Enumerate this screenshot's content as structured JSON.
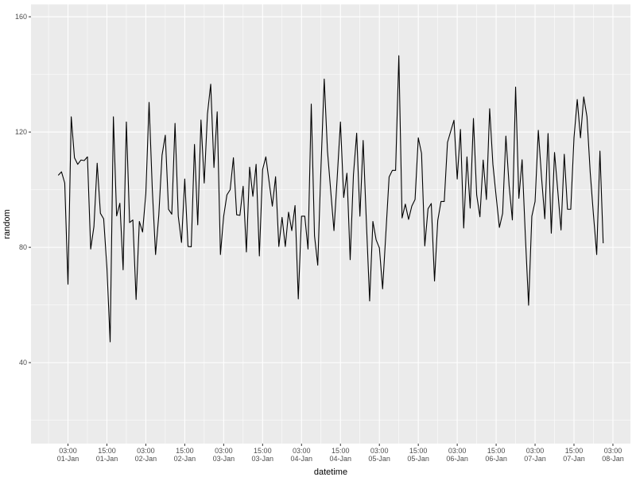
{
  "chart_data": {
    "type": "line",
    "xlabel": "datetime",
    "ylabel": "random",
    "grid": true,
    "line_color": "#000000",
    "panel_color": "#EBEBEB",
    "grid_color": "#FFFFFF",
    "ylim": [
      11.9,
      164.3
    ],
    "y_ticks": [
      40,
      80,
      120,
      160
    ],
    "x_ticks": [
      {
        "time": "03:00",
        "date": "01-Jan"
      },
      {
        "time": "15:00",
        "date": "01-Jan"
      },
      {
        "time": "03:00",
        "date": "02-Jan"
      },
      {
        "time": "15:00",
        "date": "02-Jan"
      },
      {
        "time": "03:00",
        "date": "03-Jan"
      },
      {
        "time": "15:00",
        "date": "03-Jan"
      },
      {
        "time": "03:00",
        "date": "04-Jan"
      },
      {
        "time": "15:00",
        "date": "04-Jan"
      },
      {
        "time": "03:00",
        "date": "05-Jan"
      },
      {
        "time": "15:00",
        "date": "05-Jan"
      },
      {
        "time": "03:00",
        "date": "06-Jan"
      },
      {
        "time": "15:00",
        "date": "06-Jan"
      },
      {
        "time": "03:00",
        "date": "07-Jan"
      },
      {
        "time": "15:00",
        "date": "07-Jan"
      },
      {
        "time": "03:00",
        "date": "08-Jan"
      }
    ],
    "x": [
      "01-Jan 00:00",
      "01-Jan 01:00",
      "01-Jan 02:00",
      "01-Jan 03:00",
      "01-Jan 04:00",
      "01-Jan 05:00",
      "01-Jan 06:00",
      "01-Jan 07:00",
      "01-Jan 08:00",
      "01-Jan 09:00",
      "01-Jan 10:00",
      "01-Jan 11:00",
      "01-Jan 12:00",
      "01-Jan 13:00",
      "01-Jan 14:00",
      "01-Jan 15:00",
      "01-Jan 16:00",
      "01-Jan 17:00",
      "01-Jan 18:00",
      "01-Jan 19:00",
      "01-Jan 20:00",
      "01-Jan 21:00",
      "01-Jan 22:00",
      "01-Jan 23:00",
      "02-Jan 00:00",
      "02-Jan 01:00",
      "02-Jan 02:00",
      "02-Jan 03:00",
      "02-Jan 04:00",
      "02-Jan 05:00",
      "02-Jan 06:00",
      "02-Jan 07:00",
      "02-Jan 08:00",
      "02-Jan 09:00",
      "02-Jan 10:00",
      "02-Jan 11:00",
      "02-Jan 12:00",
      "02-Jan 13:00",
      "02-Jan 14:00",
      "02-Jan 15:00",
      "02-Jan 16:00",
      "02-Jan 17:00",
      "02-Jan 18:00",
      "02-Jan 19:00",
      "02-Jan 20:00",
      "02-Jan 21:00",
      "02-Jan 22:00",
      "02-Jan 23:00",
      "03-Jan 00:00",
      "03-Jan 01:00",
      "03-Jan 02:00",
      "03-Jan 03:00",
      "03-Jan 04:00",
      "03-Jan 05:00",
      "03-Jan 06:00",
      "03-Jan 07:00",
      "03-Jan 08:00",
      "03-Jan 09:00",
      "03-Jan 10:00",
      "03-Jan 11:00",
      "03-Jan 12:00",
      "03-Jan 13:00",
      "03-Jan 14:00",
      "03-Jan 15:00",
      "03-Jan 16:00",
      "03-Jan 17:00",
      "03-Jan 18:00",
      "03-Jan 19:00",
      "03-Jan 20:00",
      "03-Jan 21:00",
      "03-Jan 22:00",
      "03-Jan 23:00",
      "04-Jan 00:00",
      "04-Jan 01:00",
      "04-Jan 02:00",
      "04-Jan 03:00",
      "04-Jan 04:00",
      "04-Jan 05:00",
      "04-Jan 06:00",
      "04-Jan 07:00",
      "04-Jan 08:00",
      "04-Jan 09:00",
      "04-Jan 10:00",
      "04-Jan 11:00",
      "04-Jan 12:00",
      "04-Jan 13:00",
      "04-Jan 14:00",
      "04-Jan 15:00",
      "04-Jan 16:00",
      "04-Jan 17:00",
      "04-Jan 18:00",
      "04-Jan 19:00",
      "04-Jan 20:00",
      "04-Jan 21:00",
      "04-Jan 22:00",
      "04-Jan 23:00",
      "05-Jan 00:00",
      "05-Jan 01:00",
      "05-Jan 02:00",
      "05-Jan 03:00",
      "05-Jan 04:00",
      "05-Jan 05:00",
      "05-Jan 06:00",
      "05-Jan 07:00",
      "05-Jan 08:00",
      "05-Jan 09:00",
      "05-Jan 10:00",
      "05-Jan 11:00",
      "05-Jan 12:00",
      "05-Jan 13:00",
      "05-Jan 14:00",
      "05-Jan 15:00",
      "05-Jan 16:00",
      "05-Jan 17:00",
      "05-Jan 18:00",
      "05-Jan 19:00",
      "05-Jan 20:00",
      "05-Jan 21:00",
      "05-Jan 22:00",
      "05-Jan 23:00",
      "06-Jan 00:00",
      "06-Jan 01:00",
      "06-Jan 02:00",
      "06-Jan 03:00",
      "06-Jan 04:00",
      "06-Jan 05:00",
      "06-Jan 06:00",
      "06-Jan 07:00",
      "06-Jan 08:00",
      "06-Jan 09:00",
      "06-Jan 10:00",
      "06-Jan 11:00",
      "06-Jan 12:00",
      "06-Jan 13:00",
      "06-Jan 14:00",
      "06-Jan 15:00",
      "06-Jan 16:00",
      "06-Jan 17:00",
      "06-Jan 18:00",
      "06-Jan 19:00",
      "06-Jan 20:00",
      "06-Jan 21:00",
      "06-Jan 22:00",
      "06-Jan 23:00",
      "07-Jan 00:00",
      "07-Jan 01:00",
      "07-Jan 02:00",
      "07-Jan 03:00",
      "07-Jan 04:00",
      "07-Jan 05:00",
      "07-Jan 06:00",
      "07-Jan 07:00",
      "07-Jan 08:00",
      "07-Jan 09:00",
      "07-Jan 10:00",
      "07-Jan 11:00",
      "07-Jan 12:00",
      "07-Jan 13:00",
      "07-Jan 14:00",
      "07-Jan 15:00",
      "07-Jan 16:00",
      "07-Jan 17:00",
      "07-Jan 18:00",
      "07-Jan 19:00",
      "07-Jan 20:00",
      "07-Jan 21:00",
      "07-Jan 22:00",
      "07-Jan 23:00",
      "08-Jan 00:00"
    ],
    "values": [
      105,
      106.2,
      102.3,
      67.2,
      125.3,
      111.1,
      108.8,
      110.3,
      110.1,
      111.4,
      79.4,
      87.2,
      109.2,
      91.8,
      89.9,
      73,
      47.2,
      125.3,
      90.9,
      95.3,
      72.2,
      123.5,
      88.6,
      89.5,
      61.9,
      89.0,
      85.3,
      98.7,
      130.3,
      100,
      77.5,
      91.3,
      112,
      118.9,
      93.2,
      91.5,
      123,
      90.8,
      81.7,
      103.7,
      80.3,
      80.2,
      115.7,
      87.8,
      124.2,
      102.3,
      126.3,
      136.6,
      107.7,
      127,
      77.5,
      90.8,
      98.2,
      100,
      111.1,
      91.3,
      91.1,
      101.2,
      78.4,
      107.8,
      97.7,
      108.8,
      77.0,
      107.0,
      111.4,
      102.8,
      94.3,
      104.5,
      80.3,
      90.4,
      80.3,
      92.2,
      85.8,
      94.5,
      62.1,
      90.8,
      90.8,
      79.4,
      129.7,
      84.0,
      73.8,
      107.9,
      138.4,
      113.4,
      99.6,
      85.8,
      104.2,
      123.5,
      97.3,
      105.7,
      75.7,
      105.1,
      119.6,
      90.8,
      117.1,
      88.6,
      61.4,
      89.0,
      82.6,
      79.8,
      65.6,
      84.9,
      104.4,
      106.7,
      106.7,
      146.5,
      90.2,
      95.0,
      89.7,
      94.3,
      96.6,
      118.0,
      112.6,
      80.5,
      93.4,
      95.2,
      68.3,
      89.3,
      95.9,
      95.9,
      116.4,
      120.3,
      124.1,
      103.7,
      120.9,
      86.7,
      111.4,
      93.6,
      124.7,
      98.2,
      90.6,
      110.3,
      96.6,
      128.1,
      108.8,
      97.7,
      86.9,
      91.8,
      118.6,
      101.4,
      89.5,
      135.6,
      97.0,
      110.4,
      84.0,
      59.9,
      90.8,
      95.9,
      120.6,
      104.2,
      89.9,
      119.5,
      84.9,
      112.9,
      99.6,
      86.0,
      112.3,
      93.2,
      93.2,
      118.0,
      131.3,
      118.0,
      132.2,
      125.3,
      106.0,
      91.3,
      77.5,
      113.4,
      81.4
    ]
  }
}
